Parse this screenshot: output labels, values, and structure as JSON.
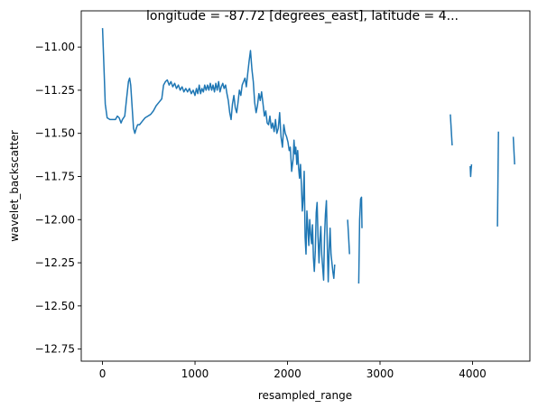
{
  "chart_data": {
    "type": "line",
    "title": "longitude = -87.72 [degrees_east], latitude = 4...",
    "xlabel": "resampled_range",
    "ylabel": "wavelet_backscatter",
    "xlim": [
      -230,
      4620
    ],
    "ylim": [
      -12.82,
      -10.79
    ],
    "x_ticks": [
      0,
      1000,
      2000,
      3000,
      4000
    ],
    "x_tick_labels": [
      "0",
      "1000",
      "2000",
      "3000",
      "4000"
    ],
    "y_ticks": [
      -11.0,
      -11.25,
      -11.5,
      -11.75,
      -12.0,
      -12.25,
      -12.5,
      -12.75
    ],
    "y_tick_labels": [
      "−11.00",
      "−11.25",
      "−11.50",
      "−11.75",
      "−12.00",
      "−12.25",
      "−12.50",
      "−12.75"
    ],
    "grid": false,
    "line_color": "#1f77b4",
    "series": [
      {
        "segments": [
          [
            [
              0,
              -10.89
            ],
            [
              18,
              -11.15
            ],
            [
              30,
              -11.33
            ],
            [
              50,
              -11.41
            ],
            [
              80,
              -11.42
            ],
            [
              110,
              -11.42
            ],
            [
              140,
              -11.42
            ],
            [
              160,
              -11.4
            ],
            [
              180,
              -11.41
            ],
            [
              200,
              -11.44
            ],
            [
              215,
              -11.42
            ],
            [
              240,
              -11.4
            ],
            [
              260,
              -11.3
            ],
            [
              280,
              -11.2
            ],
            [
              293,
              -11.18
            ],
            [
              305,
              -11.22
            ],
            [
              320,
              -11.35
            ],
            [
              335,
              -11.47
            ],
            [
              350,
              -11.5
            ],
            [
              365,
              -11.47
            ],
            [
              380,
              -11.45
            ],
            [
              400,
              -11.45
            ],
            [
              430,
              -11.43
            ],
            [
              460,
              -11.41
            ],
            [
              490,
              -11.4
            ],
            [
              520,
              -11.39
            ],
            [
              550,
              -11.37
            ],
            [
              580,
              -11.34
            ],
            [
              610,
              -11.32
            ],
            [
              640,
              -11.3
            ],
            [
              660,
              -11.22
            ],
            [
              680,
              -11.2
            ],
            [
              700,
              -11.19
            ],
            [
              720,
              -11.22
            ],
            [
              740,
              -11.2
            ],
            [
              760,
              -11.23
            ],
            [
              780,
              -11.21
            ],
            [
              800,
              -11.24
            ],
            [
              820,
              -11.22
            ],
            [
              840,
              -11.25
            ],
            [
              860,
              -11.23
            ],
            [
              880,
              -11.26
            ],
            [
              900,
              -11.24
            ],
            [
              920,
              -11.26
            ],
            [
              940,
              -11.24
            ],
            [
              960,
              -11.27
            ],
            [
              980,
              -11.25
            ],
            [
              1000,
              -11.28
            ],
            [
              1015,
              -11.24
            ],
            [
              1030,
              -11.27
            ],
            [
              1045,
              -11.22
            ],
            [
              1060,
              -11.27
            ],
            [
              1075,
              -11.24
            ],
            [
              1090,
              -11.26
            ],
            [
              1105,
              -11.22
            ],
            [
              1120,
              -11.25
            ],
            [
              1135,
              -11.22
            ],
            [
              1150,
              -11.25
            ],
            [
              1165,
              -11.21
            ],
            [
              1180,
              -11.25
            ],
            [
              1195,
              -11.22
            ],
            [
              1210,
              -11.26
            ],
            [
              1225,
              -11.21
            ],
            [
              1240,
              -11.25
            ],
            [
              1255,
              -11.2
            ],
            [
              1270,
              -11.26
            ],
            [
              1285,
              -11.23
            ],
            [
              1300,
              -11.21
            ],
            [
              1315,
              -11.24
            ],
            [
              1330,
              -11.22
            ],
            [
              1345,
              -11.27
            ],
            [
              1360,
              -11.31
            ],
            [
              1375,
              -11.38
            ],
            [
              1390,
              -11.42
            ],
            [
              1405,
              -11.33
            ],
            [
              1420,
              -11.28
            ],
            [
              1435,
              -11.35
            ],
            [
              1450,
              -11.38
            ],
            [
              1465,
              -11.32
            ],
            [
              1480,
              -11.25
            ],
            [
              1495,
              -11.28
            ],
            [
              1510,
              -11.22
            ],
            [
              1525,
              -11.2
            ],
            [
              1540,
              -11.18
            ],
            [
              1555,
              -11.23
            ],
            [
              1570,
              -11.15
            ],
            [
              1585,
              -11.08
            ],
            [
              1600,
              -11.02
            ],
            [
              1615,
              -11.13
            ],
            [
              1630,
              -11.2
            ],
            [
              1645,
              -11.32
            ],
            [
              1660,
              -11.38
            ],
            [
              1675,
              -11.34
            ],
            [
              1690,
              -11.27
            ],
            [
              1705,
              -11.31
            ],
            [
              1720,
              -11.26
            ],
            [
              1735,
              -11.33
            ],
            [
              1750,
              -11.4
            ],
            [
              1765,
              -11.37
            ],
            [
              1780,
              -11.44
            ],
            [
              1795,
              -11.45
            ],
            [
              1810,
              -11.4
            ],
            [
              1825,
              -11.47
            ],
            [
              1840,
              -11.44
            ],
            [
              1855,
              -11.49
            ],
            [
              1870,
              -11.42
            ],
            [
              1885,
              -11.5
            ],
            [
              1900,
              -11.47
            ],
            [
              1915,
              -11.38
            ],
            [
              1930,
              -11.52
            ],
            [
              1945,
              -11.58
            ],
            [
              1960,
              -11.45
            ],
            [
              1975,
              -11.5
            ],
            [
              1990,
              -11.52
            ],
            [
              2005,
              -11.55
            ],
            [
              2018,
              -11.6
            ],
            [
              2030,
              -11.58
            ],
            [
              2045,
              -11.72
            ],
            [
              2060,
              -11.65
            ],
            [
              2070,
              -11.54
            ],
            [
              2080,
              -11.62
            ],
            [
              2090,
              -11.58
            ],
            [
              2100,
              -11.68
            ],
            [
              2110,
              -11.6
            ],
            [
              2120,
              -11.7
            ],
            [
              2130,
              -11.76
            ],
            [
              2140,
              -11.68
            ],
            [
              2150,
              -11.8
            ],
            [
              2160,
              -11.95
            ],
            [
              2170,
              -11.88
            ],
            [
              2180,
              -11.72
            ],
            [
              2190,
              -12.1
            ],
            [
              2200,
              -12.2
            ],
            [
              2210,
              -11.95
            ],
            [
              2220,
              -12.05
            ],
            [
              2230,
              -12.15
            ],
            [
              2240,
              -12.0
            ],
            [
              2250,
              -12.08
            ],
            [
              2260,
              -12.14
            ],
            [
              2270,
              -12.03
            ],
            [
              2280,
              -12.22
            ],
            [
              2290,
              -12.3
            ],
            [
              2300,
              -12.18
            ],
            [
              2310,
              -11.96
            ],
            [
              2320,
              -11.9
            ],
            [
              2330,
              -12.1
            ],
            [
              2340,
              -12.25
            ],
            [
              2350,
              -12.12
            ],
            [
              2360,
              -12.04
            ],
            [
              2370,
              -12.2
            ],
            [
              2380,
              -12.28
            ],
            [
              2390,
              -12.35
            ],
            [
              2400,
              -12.1
            ],
            [
              2410,
              -11.97
            ],
            [
              2420,
              -11.89
            ],
            [
              2430,
              -12.15
            ],
            [
              2440,
              -12.36
            ],
            [
              2450,
              -12.18
            ],
            [
              2460,
              -12.05
            ],
            [
              2470,
              -12.2
            ],
            [
              2480,
              -12.25
            ],
            [
              2490,
              -12.3
            ],
            [
              2500,
              -12.34
            ],
            [
              2510,
              -12.26
            ]
          ],
          [
            [
              2650,
              -12.0
            ],
            [
              2660,
              -12.1
            ],
            [
              2670,
              -12.2
            ]
          ],
          [
            [
              2770,
              -12.37
            ],
            [
              2780,
              -12.0
            ],
            [
              2790,
              -11.88
            ],
            [
              2800,
              -11.87
            ],
            [
              2805,
              -12.05
            ]
          ],
          [
            [
              3760,
              -11.39
            ],
            [
              3780,
              -11.57
            ]
          ],
          [
            [
              3975,
              -11.69
            ],
            [
              3980,
              -11.75
            ],
            [
              3985,
              -11.71
            ],
            [
              3990,
              -11.68
            ]
          ],
          [
            [
              4270,
              -12.04
            ],
            [
              4280,
              -11.49
            ]
          ],
          [
            [
              4440,
              -11.52
            ],
            [
              4455,
              -11.68
            ]
          ]
        ]
      }
    ]
  }
}
